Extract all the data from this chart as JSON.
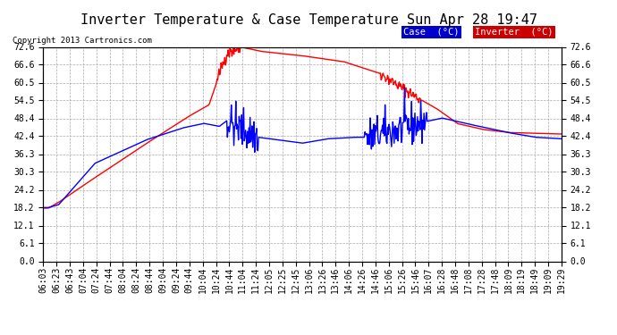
{
  "title": "Inverter Temperature & Case Temperature Sun Apr 28 19:47",
  "copyright": "Copyright 2013 Cartronics.com",
  "background_color": "#ffffff",
  "plot_bg_color": "#ffffff",
  "grid_color": "#aaaaaa",
  "legend": {
    "case_label": "Case  (°C)",
    "inverter_label": "Inverter  (°C)",
    "case_bg": "#0000cc",
    "inverter_bg": "#cc0000"
  },
  "y_ticks": [
    0.0,
    6.1,
    12.1,
    18.2,
    24.2,
    30.3,
    36.3,
    42.4,
    48.4,
    54.5,
    60.5,
    66.6,
    72.6
  ],
  "x_labels": [
    "06:03",
    "06:23",
    "06:43",
    "07:04",
    "07:24",
    "07:44",
    "08:04",
    "08:24",
    "08:44",
    "09:04",
    "09:24",
    "09:44",
    "10:04",
    "10:24",
    "10:44",
    "11:04",
    "11:24",
    "12:05",
    "12:25",
    "12:45",
    "13:06",
    "13:26",
    "13:46",
    "14:06",
    "14:26",
    "14:46",
    "15:06",
    "15:26",
    "15:46",
    "16:07",
    "16:28",
    "16:48",
    "17:08",
    "17:28",
    "17:48",
    "18:09",
    "18:19",
    "18:49",
    "19:09",
    "19:29"
  ],
  "ylim": [
    0.0,
    72.6
  ],
  "title_fontsize": 11,
  "axis_fontsize": 7,
  "line_width": 1.0
}
